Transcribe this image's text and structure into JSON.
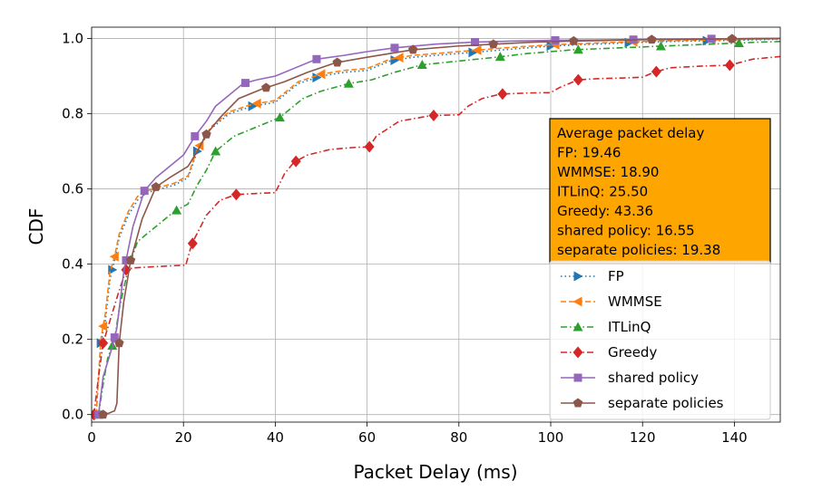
{
  "chart_data": {
    "type": "line",
    "title": "",
    "xlabel": "Packet Delay (ms)",
    "ylabel": "CDF",
    "xlim": [
      0,
      150
    ],
    "ylim": [
      -0.02,
      1.03
    ],
    "xticks": [
      0,
      20,
      40,
      60,
      80,
      100,
      120,
      140
    ],
    "yticks": [
      0.0,
      0.2,
      0.4,
      0.6,
      0.8,
      1.0
    ],
    "grid": true,
    "legend_position": "right",
    "series": [
      {
        "name": "FP",
        "color": "#1f77b4",
        "linestyle": "dotted",
        "marker": "triangle-right",
        "x": [
          1,
          2,
          3,
          4,
          5,
          6,
          8,
          10,
          12,
          15,
          18,
          21,
          23,
          26,
          30,
          35,
          40,
          42,
          45,
          50,
          55,
          60,
          65,
          70,
          80,
          90,
          100,
          110,
          120,
          130,
          140,
          150
        ],
        "y": [
          0,
          0.19,
          0.25,
          0.36,
          0.41,
          0.47,
          0.53,
          0.57,
          0.59,
          0.6,
          0.61,
          0.63,
          0.7,
          0.76,
          0.8,
          0.82,
          0.83,
          0.85,
          0.88,
          0.9,
          0.91,
          0.915,
          0.94,
          0.95,
          0.96,
          0.97,
          0.98,
          0.985,
          0.99,
          0.993,
          0.995,
          0.998
        ],
        "marker_x": [
          2,
          4.5,
          23,
          35,
          49,
          66,
          83,
          100,
          117,
          134
        ]
      },
      {
        "name": "WMMSE",
        "color": "#ff7f0e",
        "linestyle": "dashed",
        "marker": "triangle-left",
        "x": [
          1,
          2,
          3,
          4,
          5,
          6,
          8,
          10,
          12,
          15,
          18,
          21,
          23,
          26,
          30,
          35,
          40,
          42,
          45,
          50,
          55,
          60,
          65,
          70,
          80,
          90,
          100,
          110,
          120,
          130,
          140,
          150
        ],
        "y": [
          0,
          0.2,
          0.27,
          0.38,
          0.42,
          0.48,
          0.54,
          0.58,
          0.595,
          0.605,
          0.615,
          0.635,
          0.705,
          0.765,
          0.805,
          0.825,
          0.835,
          0.855,
          0.885,
          0.905,
          0.915,
          0.92,
          0.945,
          0.955,
          0.965,
          0.975,
          0.983,
          0.988,
          0.992,
          0.995,
          0.997,
          0.999
        ],
        "marker_x": [
          2.5,
          5,
          23.5,
          36,
          50,
          67,
          84,
          101,
          118,
          135
        ]
      },
      {
        "name": "ITLinQ",
        "color": "#2ca02c",
        "linestyle": "dashdot",
        "marker": "triangle-up",
        "x": [
          1.5,
          2.5,
          3.5,
          5,
          6,
          8,
          10,
          14,
          18,
          21,
          23,
          25,
          27,
          31,
          37,
          41,
          43,
          46,
          50,
          56,
          61,
          66,
          72,
          80,
          88,
          95,
          105,
          115,
          125,
          135,
          145,
          150
        ],
        "y": [
          0,
          0.08,
          0.15,
          0.2,
          0.28,
          0.39,
          0.46,
          0.5,
          0.54,
          0.56,
          0.61,
          0.65,
          0.7,
          0.74,
          0.77,
          0.79,
          0.81,
          0.84,
          0.86,
          0.88,
          0.89,
          0.91,
          0.93,
          0.94,
          0.95,
          0.96,
          0.97,
          0.975,
          0.98,
          0.985,
          0.99,
          0.992
        ],
        "marker_x": [
          1.5,
          4.5,
          18.5,
          27,
          41,
          56,
          72,
          89,
          106,
          124,
          141
        ]
      },
      {
        "name": "Greedy",
        "color": "#d62728",
        "linestyle": "dashdot",
        "marker": "diamond",
        "x": [
          0.5,
          1.5,
          2.5,
          4,
          6,
          7.5,
          9,
          12,
          15,
          18,
          20.5,
          21.5,
          22.5,
          25,
          28,
          31.5,
          36,
          40,
          42,
          44,
          47,
          52,
          57,
          60.5,
          62,
          67,
          74,
          80,
          82,
          85,
          89,
          95,
          100,
          102,
          106,
          110,
          116,
          120,
          122.5,
          126,
          132,
          139,
          144,
          150
        ],
        "y": [
          0,
          0.1,
          0.19,
          0.25,
          0.33,
          0.385,
          0.39,
          0.392,
          0.394,
          0.396,
          0.397,
          0.44,
          0.47,
          0.53,
          0.57,
          0.585,
          0.588,
          0.59,
          0.64,
          0.67,
          0.69,
          0.705,
          0.71,
          0.712,
          0.74,
          0.78,
          0.795,
          0.797,
          0.82,
          0.84,
          0.852,
          0.855,
          0.856,
          0.87,
          0.89,
          0.893,
          0.895,
          0.897,
          0.91,
          0.922,
          0.926,
          0.929,
          0.945,
          0.952
        ],
        "marker_x": [
          0.5,
          2.5,
          7.5,
          22,
          31.5,
          44.5,
          60.5,
          74.5,
          89.5,
          106,
          123,
          139
        ]
      },
      {
        "name": "shared policy",
        "color": "#9467bd",
        "linestyle": "solid",
        "marker": "square",
        "x": [
          1.5,
          2.5,
          3.5,
          4.5,
          5.5,
          7,
          9,
          11.5,
          14,
          17,
          20,
          22.5,
          25,
          27,
          30,
          33,
          36,
          40,
          44,
          49,
          55,
          60,
          66,
          75,
          83,
          92,
          100,
          110,
          118,
          126,
          135,
          145,
          150
        ],
        "y": [
          0,
          0.1,
          0.14,
          0.18,
          0.23,
          0.38,
          0.5,
          0.595,
          0.63,
          0.66,
          0.69,
          0.74,
          0.78,
          0.82,
          0.85,
          0.88,
          0.89,
          0.9,
          0.92,
          0.945,
          0.955,
          0.965,
          0.975,
          0.985,
          0.99,
          0.993,
          0.995,
          0.996,
          0.997,
          0.998,
          0.999,
          1.0,
          1.0
        ],
        "marker_x": [
          1.5,
          5,
          7.5,
          11.5,
          22.5,
          33.5,
          49,
          66,
          83.5,
          101,
          118,
          135
        ]
      },
      {
        "name": "separate policies",
        "color": "#8c564b",
        "linestyle": "solid",
        "marker": "pentagon",
        "x": [
          2,
          3,
          4,
          5,
          5.5,
          6,
          7,
          8.5,
          11,
          14,
          17,
          21,
          23,
          25,
          28,
          32,
          37,
          42,
          47,
          53,
          60,
          70,
          80,
          88,
          96,
          105,
          113,
          122,
          131,
          140,
          150
        ],
        "y": [
          0,
          0,
          0.005,
          0.01,
          0.03,
          0.19,
          0.3,
          0.41,
          0.52,
          0.605,
          0.63,
          0.66,
          0.7,
          0.745,
          0.79,
          0.84,
          0.865,
          0.885,
          0.91,
          0.935,
          0.95,
          0.97,
          0.98,
          0.985,
          0.99,
          0.993,
          0.995,
          0.997,
          0.998,
          0.999,
          1.0
        ],
        "marker_x": [
          2.5,
          6,
          8.5,
          14,
          25,
          38,
          53.5,
          70,
          87.5,
          105,
          122,
          139.5
        ]
      }
    ],
    "annotation": {
      "lines": [
        "Average packet delay",
        "FP: 19.46",
        "WMMSE: 18.90",
        "ITLinQ: 25.50",
        "Greedy: 43.36",
        "shared policy: 16.55",
        "separate policies: 19.38"
      ],
      "background": "#ffa500"
    }
  }
}
